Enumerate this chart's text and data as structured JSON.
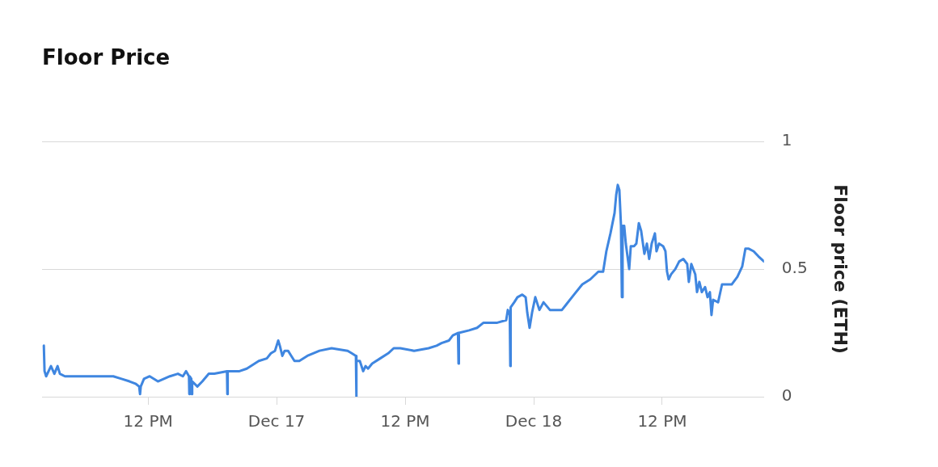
{
  "chart_data": {
    "type": "line",
    "title": "Floor Price",
    "ylabel": "Floor price (ETH)",
    "xlim": [
      "--12-16T02:06",
      "--12-18T21:30"
    ],
    "xticks": [
      {
        "value": "--12-16T12:00",
        "label": "12 PM"
      },
      {
        "value": "--12-17T00:00",
        "label": "Dec 17"
      },
      {
        "value": "--12-17T12:00",
        "label": "12 PM"
      },
      {
        "value": "--12-18T00:00",
        "label": "Dec 18"
      },
      {
        "value": "--12-18T12:00",
        "label": "12 PM"
      }
    ],
    "ylim": [
      0,
      1
    ],
    "yticks": [
      0,
      0.5,
      1
    ],
    "grid": "y",
    "legend": false,
    "marker": "none",
    "line_style": "solid",
    "series": [
      {
        "color": "#3f86e0",
        "x": [
          "--12-16T02:16",
          "--12-16T02:20",
          "--12-16T02:29",
          "--12-16T02:56",
          "--12-16T03:15",
          "--12-16T03:33",
          "--12-16T03:46",
          "--12-16T04:14",
          "--12-16T04:59",
          "--12-16T06:29",
          "--12-16T07:15",
          "--12-16T08:45",
          "--12-16T09:31",
          "--12-16T10:16",
          "--12-16T10:52",
          "--12-16T11:10",
          "--12-16T11:15",
          "--12-16T11:19",
          "--12-16T11:37",
          "--12-16T12:09",
          "--12-16T12:55",
          "--12-16T14:02",
          "--12-16T14:47",
          "--12-16T15:15",
          "--12-16T15:33",
          "--12-16T15:49",
          "--12-16T15:51",
          "--12-16T15:53",
          "--12-16T16:02",
          "--12-16T16:05",
          "--12-16T16:07",
          "--12-16T16:36",
          "--12-16T17:04",
          "--12-16T17:40",
          "--12-16T18:11",
          "--12-16T19:22",
          "--12-16T19:24",
          "--12-16T19:26",
          "--12-16T20:32",
          "--12-16T21:13",
          "--12-16T22:20",
          "--12-16T23:05",
          "--12-16T23:28",
          "--12-16T23:51",
          "--12-17T00:09",
          "--12-17T00:18",
          "--12-17T00:32",
          "--12-17T00:45",
          "--12-17T01:04",
          "--12-17T01:22",
          "--12-17T01:40",
          "--12-17T02:07",
          "--12-17T02:52",
          "--12-17T04:00",
          "--12-17T05:08",
          "--12-17T06:38",
          "--12-17T07:01",
          "--12-17T07:24",
          "--12-17T07:26",
          "--12-17T07:28",
          "--12-17T07:46",
          "--12-17T08:05",
          "--12-17T08:18",
          "--12-17T08:32",
          "--12-17T08:55",
          "--12-17T09:40",
          "--12-17T10:25",
          "--12-17T10:56",
          "--12-17T11:33",
          "--12-17T12:50",
          "--12-17T14:11",
          "--12-17T14:56",
          "--12-17T15:24",
          "--12-17T16:05",
          "--12-17T16:27",
          "--12-17T16:56",
          "--12-17T16:59",
          "--12-17T17:01",
          "--12-17T17:58",
          "--12-17T18:43",
          "--12-17T19:19",
          "--12-17T20:36",
          "--12-17T21:26",
          "--12-17T21:35",
          "--12-17T21:46",
          "--12-17T21:49",
          "--12-17T21:51",
          "--12-17T22:11",
          "--12-17T22:29",
          "--12-17T22:56",
          "--12-17T23:15",
          "--12-17T23:24",
          "--12-17T23:37",
          "--12-17T23:51",
          "--12-18T00:09",
          "--12-18T00:32",
          "--12-18T00:55",
          "--12-18T01:31",
          "--12-18T02:38",
          "--12-18T03:01",
          "--12-18T03:46",
          "--12-18T04:32",
          "--12-18T05:17",
          "--12-18T06:02",
          "--12-18T06:29",
          "--12-18T06:47",
          "--12-18T07:10",
          "--12-18T07:33",
          "--12-18T07:42",
          "--12-18T07:51",
          "--12-18T08:00",
          "--12-18T08:09",
          "--12-18T08:14",
          "--12-18T08:18",
          "--12-18T08:27",
          "--12-18T08:36",
          "--12-18T08:55",
          "--12-18T09:04",
          "--12-18T09:22",
          "--12-18T09:35",
          "--12-18T09:49",
          "--12-18T10:02",
          "--12-18T10:20",
          "--12-18T10:34",
          "--12-18T10:47",
          "--12-18T11:01",
          "--12-18T11:19",
          "--12-18T11:28",
          "--12-18T11:42",
          "--12-18T12:05",
          "--12-18T12:18",
          "--12-18T12:27",
          "--12-18T12:36",
          "--12-18T12:50",
          "--12-18T13:13",
          "--12-18T13:35",
          "--12-18T13:58",
          "--12-18T14:20",
          "--12-18T14:29",
          "--12-18T14:43",
          "--12-18T15:05",
          "--12-18T15:15",
          "--12-18T15:28",
          "--12-18T15:42",
          "--12-18T16:00",
          "--12-18T16:14",
          "--12-18T16:27",
          "--12-18T16:36",
          "--12-18T16:45",
          "--12-18T17:13",
          "--12-18T17:35",
          "--12-18T18:29",
          "--12-18T19:01",
          "--12-18T19:28",
          "--12-18T19:46",
          "--12-18T20:05",
          "--12-18T20:32",
          "--12-18T20:59",
          "--12-18T21:30"
        ],
        "values": [
          0.2,
          0.1,
          0.08,
          0.12,
          0.09,
          0.12,
          0.09,
          0.08,
          0.08,
          0.08,
          0.08,
          0.08,
          0.07,
          0.06,
          0.05,
          0.04,
          0.01,
          0.04,
          0.07,
          0.08,
          0.06,
          0.08,
          0.09,
          0.08,
          0.1,
          0.08,
          0.01,
          0.08,
          0.07,
          0.01,
          0.06,
          0.04,
          0.06,
          0.09,
          0.09,
          0.1,
          0.01,
          0.1,
          0.1,
          0.11,
          0.14,
          0.15,
          0.17,
          0.18,
          0.22,
          0.2,
          0.16,
          0.18,
          0.18,
          0.16,
          0.14,
          0.14,
          0.16,
          0.18,
          0.19,
          0.18,
          0.17,
          0.16,
          0,
          0.14,
          0.14,
          0.1,
          0.12,
          0.11,
          0.13,
          0.15,
          0.17,
          0.19,
          0.19,
          0.18,
          0.19,
          0.2,
          0.21,
          0.22,
          0.24,
          0.25,
          0.13,
          0.25,
          0.26,
          0.27,
          0.29,
          0.29,
          0.3,
          0.34,
          0.32,
          0.12,
          0.35,
          0.37,
          0.39,
          0.4,
          0.39,
          0.33,
          0.27,
          0.33,
          0.39,
          0.34,
          0.37,
          0.34,
          0.34,
          0.36,
          0.4,
          0.44,
          0.46,
          0.49,
          0.49,
          0.57,
          0.64,
          0.72,
          0.79,
          0.83,
          0.81,
          0.67,
          0.39,
          0.67,
          0.67,
          0.6,
          0.5,
          0.59,
          0.59,
          0.6,
          0.68,
          0.65,
          0.56,
          0.6,
          0.54,
          0.6,
          0.64,
          0.57,
          0.6,
          0.59,
          0.57,
          0.49,
          0.46,
          0.48,
          0.5,
          0.53,
          0.54,
          0.52,
          0.45,
          0.52,
          0.48,
          0.41,
          0.45,
          0.41,
          0.43,
          0.39,
          0.41,
          0.32,
          0.38,
          0.37,
          0.44,
          0.44,
          0.47,
          0.51,
          0.58,
          0.58,
          0.57,
          0.55,
          0.53
        ]
      }
    ]
  }
}
